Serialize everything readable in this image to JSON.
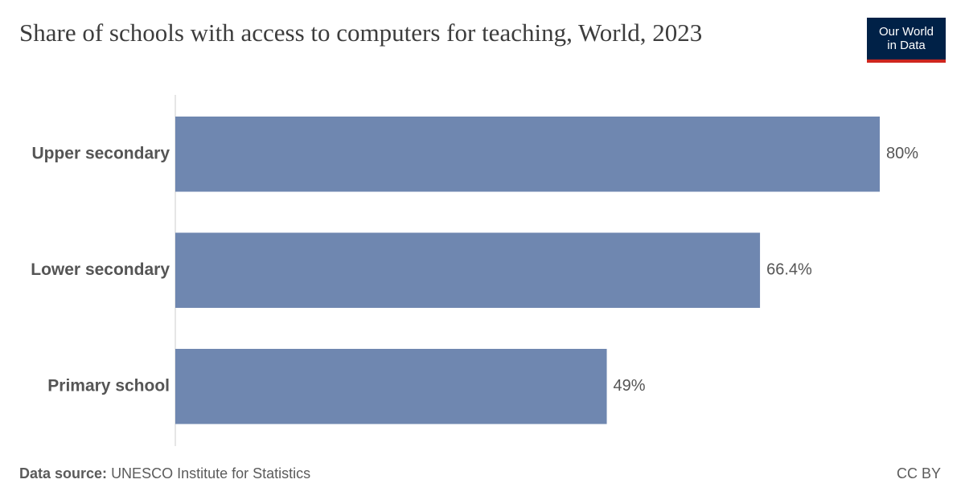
{
  "chart_data": {
    "type": "bar",
    "orientation": "horizontal",
    "title": "Share of schools with access to computers for teaching, World, 2023",
    "categories": [
      "Upper secondary",
      "Lower secondary",
      "Primary school"
    ],
    "values": [
      80,
      66.4,
      49
    ],
    "value_labels": [
      "80%",
      "66.4%",
      "49%"
    ],
    "color": "#6f87b0",
    "source_label": "Data source:",
    "source": "UNESCO Institute for Statistics",
    "license": "CC BY",
    "logo": [
      "Our World",
      "in Data"
    ]
  }
}
